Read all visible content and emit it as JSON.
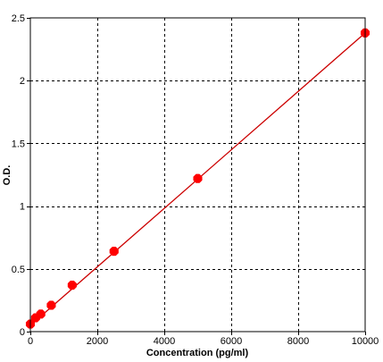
{
  "chart_data": {
    "type": "scatter",
    "title": "",
    "xlabel": "Concentration (pg/ml)",
    "ylabel": "O.D.",
    "xlim": [
      0,
      10000
    ],
    "ylim": [
      0,
      2.5
    ],
    "x_ticks": [
      0,
      2000,
      4000,
      6000,
      8000,
      10000
    ],
    "y_ticks": [
      0,
      0.5,
      1,
      1.5,
      2,
      2.5
    ],
    "x_tick_labels": [
      "0",
      "2000",
      "4000",
      "6000",
      "8000",
      "10000"
    ],
    "y_tick_labels": [
      "0",
      "0.5",
      "1",
      "1.5",
      "2",
      "2.5"
    ],
    "grid": true,
    "series": [
      {
        "x": [
          0,
          156,
          312,
          625,
          1250,
          2500,
          5000,
          10000
        ],
        "y": [
          0.06,
          0.11,
          0.14,
          0.21,
          0.37,
          0.64,
          1.22,
          2.38
        ]
      }
    ],
    "fit_line": {
      "x": [
        0,
        10000
      ],
      "y": [
        0.05,
        2.38
      ]
    },
    "marker_color": "#ff0000",
    "line_color": "#cc0000",
    "grid_color": "#000000",
    "frame_color": "#000000",
    "background_color": "#ffffff"
  }
}
